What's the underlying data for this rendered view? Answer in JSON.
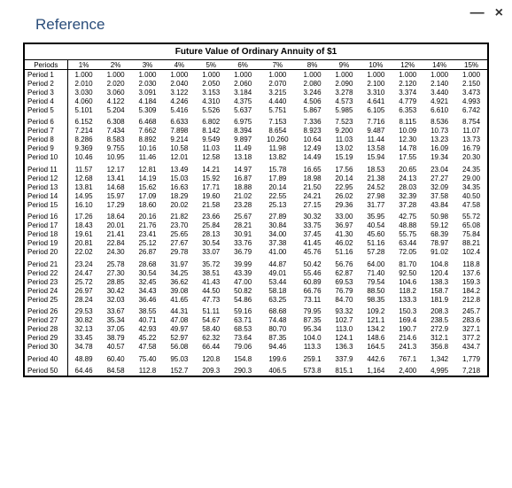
{
  "window": {
    "title": "Reference",
    "minimize_label": "—",
    "close_label": "×"
  },
  "table": {
    "title": "Future Value of Ordinary Annuity of $1",
    "periods_label": "Periods",
    "columns": [
      "1%",
      "2%",
      "3%",
      "4%",
      "5%",
      "6%",
      "7%",
      "8%",
      "9%",
      "10%",
      "12%",
      "14%",
      "15%"
    ],
    "groups": [
      [
        {
          "label": "Period 1",
          "v": [
            "1.000",
            "1.000",
            "1.000",
            "1.000",
            "1.000",
            "1.000",
            "1.000",
            "1.000",
            "1.000",
            "1.000",
            "1.000",
            "1.000",
            "1.000"
          ]
        },
        {
          "label": "Period 2",
          "v": [
            "2.010",
            "2.020",
            "2.030",
            "2.040",
            "2.050",
            "2.060",
            "2.070",
            "2.080",
            "2.090",
            "2.100",
            "2.120",
            "2.140",
            "2.150"
          ]
        },
        {
          "label": "Period 3",
          "v": [
            "3.030",
            "3.060",
            "3.091",
            "3.122",
            "3.153",
            "3.184",
            "3.215",
            "3.246",
            "3.278",
            "3.310",
            "3.374",
            "3.440",
            "3.473"
          ]
        },
        {
          "label": "Period 4",
          "v": [
            "4.060",
            "4.122",
            "4.184",
            "4.246",
            "4.310",
            "4.375",
            "4.440",
            "4.506",
            "4.573",
            "4.641",
            "4.779",
            "4.921",
            "4.993"
          ]
        },
        {
          "label": "Period 5",
          "v": [
            "5.101",
            "5.204",
            "5.309",
            "5.416",
            "5.526",
            "5.637",
            "5.751",
            "5.867",
            "5.985",
            "6.105",
            "6.353",
            "6.610",
            "6.742"
          ]
        }
      ],
      [
        {
          "label": "Period 6",
          "v": [
            "6.152",
            "6.308",
            "6.468",
            "6.633",
            "6.802",
            "6.975",
            "7.153",
            "7.336",
            "7.523",
            "7.716",
            "8.115",
            "8.536",
            "8.754"
          ]
        },
        {
          "label": "Period 7",
          "v": [
            "7.214",
            "7.434",
            "7.662",
            "7.898",
            "8.142",
            "8.394",
            "8.654",
            "8.923",
            "9.200",
            "9.487",
            "10.09",
            "10.73",
            "11.07"
          ]
        },
        {
          "label": "Period 8",
          "v": [
            "8.286",
            "8.583",
            "8.892",
            "9.214",
            "9.549",
            "9.897",
            "10.260",
            "10.64",
            "11.03",
            "11.44",
            "12.30",
            "13.23",
            "13.73"
          ]
        },
        {
          "label": "Period 9",
          "v": [
            "9.369",
            "9.755",
            "10.16",
            "10.58",
            "11.03",
            "11.49",
            "11.98",
            "12.49",
            "13.02",
            "13.58",
            "14.78",
            "16.09",
            "16.79"
          ]
        },
        {
          "label": "Period 10",
          "v": [
            "10.46",
            "10.95",
            "11.46",
            "12.01",
            "12.58",
            "13.18",
            "13.82",
            "14.49",
            "15.19",
            "15.94",
            "17.55",
            "19.34",
            "20.30"
          ]
        }
      ],
      [
        {
          "label": "Period 11",
          "v": [
            "11.57",
            "12.17",
            "12.81",
            "13.49",
            "14.21",
            "14.97",
            "15.78",
            "16.65",
            "17.56",
            "18.53",
            "20.65",
            "23.04",
            "24.35"
          ]
        },
        {
          "label": "Period 12",
          "v": [
            "12.68",
            "13.41",
            "14.19",
            "15.03",
            "15.92",
            "16.87",
            "17.89",
            "18.98",
            "20.14",
            "21.38",
            "24.13",
            "27.27",
            "29.00"
          ]
        },
        {
          "label": "Period 13",
          "v": [
            "13.81",
            "14.68",
            "15.62",
            "16.63",
            "17.71",
            "18.88",
            "20.14",
            "21.50",
            "22.95",
            "24.52",
            "28.03",
            "32.09",
            "34.35"
          ]
        },
        {
          "label": "Period 14",
          "v": [
            "14.95",
            "15.97",
            "17.09",
            "18.29",
            "19.60",
            "21.02",
            "22.55",
            "24.21",
            "26.02",
            "27.98",
            "32.39",
            "37.58",
            "40.50"
          ]
        },
        {
          "label": "Period 15",
          "v": [
            "16.10",
            "17.29",
            "18.60",
            "20.02",
            "21.58",
            "23.28",
            "25.13",
            "27.15",
            "29.36",
            "31.77",
            "37.28",
            "43.84",
            "47.58"
          ]
        }
      ],
      [
        {
          "label": "Period 16",
          "v": [
            "17.26",
            "18.64",
            "20.16",
            "21.82",
            "23.66",
            "25.67",
            "27.89",
            "30.32",
            "33.00",
            "35.95",
            "42.75",
            "50.98",
            "55.72"
          ]
        },
        {
          "label": "Period 17",
          "v": [
            "18.43",
            "20.01",
            "21.76",
            "23.70",
            "25.84",
            "28.21",
            "30.84",
            "33.75",
            "36.97",
            "40.54",
            "48.88",
            "59.12",
            "65.08"
          ]
        },
        {
          "label": "Period 18",
          "v": [
            "19.61",
            "21.41",
            "23.41",
            "25.65",
            "28.13",
            "30.91",
            "34.00",
            "37.45",
            "41.30",
            "45.60",
            "55.75",
            "68.39",
            "75.84"
          ]
        },
        {
          "label": "Period 19",
          "v": [
            "20.81",
            "22.84",
            "25.12",
            "27.67",
            "30.54",
            "33.76",
            "37.38",
            "41.45",
            "46.02",
            "51.16",
            "63.44",
            "78.97",
            "88.21"
          ]
        },
        {
          "label": "Period 20",
          "v": [
            "22.02",
            "24.30",
            "26.87",
            "29.78",
            "33.07",
            "36.79",
            "41.00",
            "45.76",
            "51.16",
            "57.28",
            "72.05",
            "91.02",
            "102.4"
          ]
        }
      ],
      [
        {
          "label": "Period 21",
          "v": [
            "23.24",
            "25.78",
            "28.68",
            "31.97",
            "35.72",
            "39.99",
            "44.87",
            "50.42",
            "56.76",
            "64.00",
            "81.70",
            "104.8",
            "118.8"
          ]
        },
        {
          "label": "Period 22",
          "v": [
            "24.47",
            "27.30",
            "30.54",
            "34.25",
            "38.51",
            "43.39",
            "49.01",
            "55.46",
            "62.87",
            "71.40",
            "92.50",
            "120.4",
            "137.6"
          ]
        },
        {
          "label": "Period 23",
          "v": [
            "25.72",
            "28.85",
            "32.45",
            "36.62",
            "41.43",
            "47.00",
            "53.44",
            "60.89",
            "69.53",
            "79.54",
            "104.6",
            "138.3",
            "159.3"
          ]
        },
        {
          "label": "Period 24",
          "v": [
            "26.97",
            "30.42",
            "34.43",
            "39.08",
            "44.50",
            "50.82",
            "58.18",
            "66.76",
            "76.79",
            "88.50",
            "118.2",
            "158.7",
            "184.2"
          ]
        },
        {
          "label": "Period 25",
          "v": [
            "28.24",
            "32.03",
            "36.46",
            "41.65",
            "47.73",
            "54.86",
            "63.25",
            "73.11",
            "84.70",
            "98.35",
            "133.3",
            "181.9",
            "212.8"
          ]
        }
      ],
      [
        {
          "label": "Period 26",
          "v": [
            "29.53",
            "33.67",
            "38.55",
            "44.31",
            "51.11",
            "59.16",
            "68.68",
            "79.95",
            "93.32",
            "109.2",
            "150.3",
            "208.3",
            "245.7"
          ]
        },
        {
          "label": "Period 27",
          "v": [
            "30.82",
            "35.34",
            "40.71",
            "47.08",
            "54.67",
            "63.71",
            "74.48",
            "87.35",
            "102.7",
            "121.1",
            "169.4",
            "238.5",
            "283.6"
          ]
        },
        {
          "label": "Period 28",
          "v": [
            "32.13",
            "37.05",
            "42.93",
            "49.97",
            "58.40",
            "68.53",
            "80.70",
            "95.34",
            "113.0",
            "134.2",
            "190.7",
            "272.9",
            "327.1"
          ]
        },
        {
          "label": "Period 29",
          "v": [
            "33.45",
            "38.79",
            "45.22",
            "52.97",
            "62.32",
            "73.64",
            "87.35",
            "104.0",
            "124.1",
            "148.6",
            "214.6",
            "312.1",
            "377.2"
          ]
        },
        {
          "label": "Period 30",
          "v": [
            "34.78",
            "40.57",
            "47.58",
            "56.08",
            "66.44",
            "79.06",
            "94.46",
            "113.3",
            "136.3",
            "164.5",
            "241.3",
            "356.8",
            "434.7"
          ]
        }
      ],
      [
        {
          "label": "Period 40",
          "v": [
            "48.89",
            "60.40",
            "75.40",
            "95.03",
            "120.8",
            "154.8",
            "199.6",
            "259.1",
            "337.9",
            "442.6",
            "767.1",
            "1,342",
            "1,779"
          ]
        }
      ],
      [
        {
          "label": "Period 50",
          "v": [
            "64.46",
            "84.58",
            "112.8",
            "152.7",
            "209.3",
            "290.3",
            "406.5",
            "573.8",
            "815.1",
            "1,164",
            "2,400",
            "4,995",
            "7,218"
          ]
        }
      ]
    ]
  },
  "style": {
    "title_color": "#2a4d7a",
    "border_color": "#000000",
    "background": "#ffffff"
  }
}
